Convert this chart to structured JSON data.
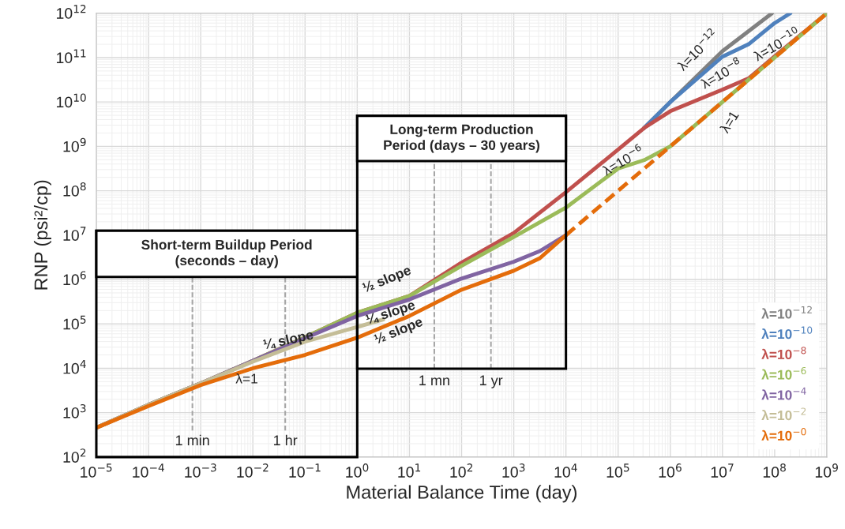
{
  "chart_data": {
    "type": "line",
    "xlabel": "Material Balance Time (day)",
    "ylabel": "RNP (psi²/cp)",
    "log": "xy",
    "grid": true,
    "legend": "bottom right",
    "xlim": [
      1e-05,
      1000000000.0
    ],
    "ylim": [
      100,
      1000000000000.0
    ],
    "xticks": [
      {
        "value": 1e-05,
        "label": "10$^{−5}$"
      },
      {
        "value": 0.0001,
        "label": "10$^{−4}$"
      },
      {
        "value": 0.001,
        "label": "10$^{−3}$"
      },
      {
        "value": 0.01,
        "label": "10$^{−2}$"
      },
      {
        "value": 0.1,
        "label": "10$^{−1}$"
      },
      {
        "value": 1,
        "label": "10$^{0}$"
      },
      {
        "value": 10,
        "label": "10$^{1}$"
      },
      {
        "value": 100,
        "label": "10$^{2}$"
      },
      {
        "value": 1000,
        "label": "10$^{3}$"
      },
      {
        "value": 10000.0,
        "label": "10$^{4}$"
      },
      {
        "value": 100000.0,
        "label": "10$^{5}$"
      },
      {
        "value": 1000000.0,
        "label": "10$^{6}$"
      },
      {
        "value": 10000000.0,
        "label": "10$^{7}$"
      },
      {
        "value": 100000000.0,
        "label": "10$^{8}$"
      },
      {
        "value": 1000000000.0,
        "label": "10$^{9}$"
      }
    ],
    "yticks": [
      {
        "value": 100,
        "label": "10$^{2}$"
      },
      {
        "value": 1000,
        "label": "10$^{3}$"
      },
      {
        "value": 10000.0,
        "label": "10$^{4}$"
      },
      {
        "value": 100000.0,
        "label": "10$^{5}$"
      },
      {
        "value": 1000000.0,
        "label": "10$^{6}$"
      },
      {
        "value": 10000000.0,
        "label": "10$^{7}$"
      },
      {
        "value": 100000000.0,
        "label": "10$^{8}$"
      },
      {
        "value": 1000000000.0,
        "label": "10$^{9}$"
      },
      {
        "value": 10000000000.0,
        "label": "10$^{10}$"
      },
      {
        "value": 100000000000.0,
        "label": "10$^{11}$"
      },
      {
        "value": 1000000000000.0,
        "label": "10$^{12}$"
      }
    ],
    "series": [
      {
        "name": "λ=10$^{−12}$",
        "color": "#808080",
        "x": [
          316000,
          1000000.0,
          10000000.0,
          89000000.0
        ],
        "values": [
          2600000000,
          10000000000.0,
          140000000000.0,
          1000000000000.0
        ]
      },
      {
        "name": "λ=10$^{−10}$",
        "color": "#4f81bd",
        "x": [
          316000,
          1000000.0,
          10000000.0,
          31600000.0,
          100000000.0,
          200000000.0
        ],
        "values": [
          2600000000,
          10000000000.0,
          105000000000.0,
          200000000000.0,
          600000000000.0,
          1000000000000.0
        ]
      },
      {
        "name": "λ=10$^{−8}$",
        "color": "#c0504d",
        "x": [
          1e-05,
          0.0001,
          0.001,
          0.01,
          0.1,
          1,
          10,
          100,
          1000,
          10000.0,
          100000.0,
          316000,
          1000000.0,
          10000000.0,
          31600000.0,
          100000000.0,
          1000000000.0
        ],
        "values": [
          457,
          1510,
          4570,
          14800,
          50000,
          178000,
          427000,
          2400000,
          11200000,
          93000000,
          850000000,
          2600000000,
          6200000000,
          19000000000.0,
          34000000000.0,
          107000000000.0,
          1000000000000.0
        ]
      },
      {
        "name": "λ=10$^{−6}$",
        "color": "#9bbb59",
        "x": [
          1e-05,
          0.0001,
          0.001,
          0.01,
          0.1,
          1,
          10,
          100,
          1000,
          10000.0,
          100000.0,
          316000,
          1000000.0,
          10000000.0,
          100000000.0,
          1000000000.0
        ],
        "values": [
          457,
          1510,
          4570,
          14800,
          50000,
          178000,
          427000,
          2040000,
          9100000,
          41700000,
          316000000,
          490000000,
          1000000000.0,
          10000000000.0,
          100000000000.0,
          1000000000000.0
        ]
      },
      {
        "name": "λ=10$^{−4}$",
        "color": "#8064a2",
        "x": [
          1e-05,
          0.0001,
          0.001,
          0.01,
          0.1,
          1,
          10,
          100,
          1000,
          3162,
          10000.0
        ],
        "values": [
          457,
          1510,
          4570,
          14800,
          47900,
          151000,
          355000,
          1050000,
          2510000,
          4370000,
          10000000.0
        ]
      },
      {
        "name": "λ=10$^{−2}$",
        "color": "#c4bd97",
        "x": [
          1e-05,
          0.0001,
          0.001,
          0.01,
          0.1,
          1,
          3.16
        ],
        "values": [
          457,
          1510,
          4570,
          14100,
          39800,
          85000,
          126000
        ]
      },
      {
        "name": "λ=10$^{−0}$",
        "color": "#e46c0a",
        "x": [
          1e-05,
          0.0001,
          0.001,
          0.01,
          0.1,
          1,
          10,
          100,
          1000,
          3162,
          10000.0
        ],
        "values": [
          457,
          1410,
          4170,
          10000,
          20000,
          49000,
          151000,
          590000,
          1580000,
          3020000,
          10000000.0
        ]
      },
      {
        "color": "#e46c0a",
        "line_style": "dashed",
        "x": [
          10000.0,
          1000000.0,
          1000000000.0
        ],
        "values": [
          10000000.0,
          1000000000.0,
          1000000000000.0
        ]
      }
    ],
    "bands": [
      {
        "axis": "x",
        "from": 1e-05,
        "to": 1,
        "label": "Short-term Buildup Period\n(seconds – day)"
      },
      {
        "axis": "x",
        "from": 1,
        "to": 10000.0,
        "label": "Long-term Production\nPeriod (days – 30 years)"
      }
    ],
    "ref_lines": [
      {
        "axis": "x",
        "value": 0.000694,
        "label": "1 min",
        "color": "#a6a6a6",
        "line_style": "dashed"
      },
      {
        "axis": "x",
        "value": 0.0417,
        "label": "1 hr",
        "color": "#a6a6a6",
        "line_style": "dashed"
      },
      {
        "axis": "x",
        "value": 30,
        "label": "1 mn",
        "color": "#a6a6a6",
        "line_style": "dashed"
      },
      {
        "axis": "x",
        "value": 365,
        "label": "1 yr",
        "color": "#a6a6a6",
        "line_style": "dashed"
      }
    ],
    "annotations": [
      "λ=10$^{−12}$",
      "λ=10$^{−10}$",
      "λ=10$^{−8}$",
      {
        "text": "λ=10$^{−6}$",
        "x": 130000,
        "y": 450000000
      },
      "λ=1",
      "½ slope",
      "¼ slope",
      "½ slope",
      {
        "text": "¼ slope",
        "x": 0.048,
        "y": 42000
      },
      "λ=1"
    ]
  }
}
